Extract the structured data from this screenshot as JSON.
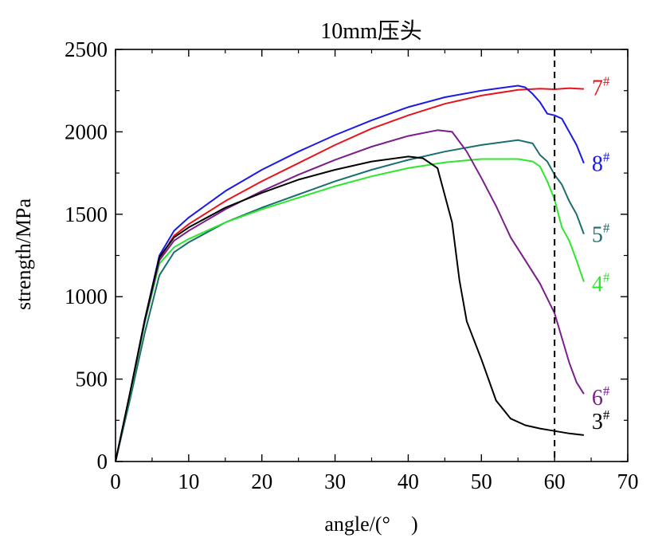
{
  "chart_data": {
    "type": "line",
    "title": "10mm压头",
    "xlabel": "angle/(°　)",
    "ylabel": "strength/MPa",
    "xlim": [
      0,
      70
    ],
    "ylim": [
      0,
      2500
    ],
    "x_ticks": [
      0,
      10,
      20,
      30,
      40,
      50,
      60,
      70
    ],
    "y_ticks": [
      0,
      500,
      1000,
      1500,
      2000,
      2500
    ],
    "grid": false,
    "legend": "inline labels at line ends",
    "reference_line": {
      "x": 60,
      "style": "dashed",
      "color": "#000000"
    },
    "series": [
      {
        "name": "7#",
        "label_main": "7",
        "label_sup": "#",
        "color": "#e8141c",
        "x": [
          0,
          2,
          4,
          6,
          8,
          10,
          15,
          20,
          25,
          30,
          35,
          40,
          45,
          50,
          55,
          58,
          60,
          62,
          64
        ],
        "y": [
          0,
          420,
          850,
          1230,
          1370,
          1440,
          1580,
          1700,
          1810,
          1920,
          2020,
          2100,
          2170,
          2220,
          2255,
          2262,
          2258,
          2265,
          2260
        ]
      },
      {
        "name": "8#",
        "label_main": "8",
        "label_sup": "#",
        "color": "#1a1ae6",
        "x": [
          0,
          2,
          4,
          6,
          8,
          10,
          15,
          20,
          25,
          30,
          35,
          40,
          45,
          50,
          55,
          56,
          57,
          58,
          59,
          60,
          61,
          62,
          63,
          64
        ],
        "y": [
          0,
          420,
          860,
          1250,
          1400,
          1480,
          1640,
          1770,
          1880,
          1980,
          2070,
          2150,
          2210,
          2250,
          2280,
          2270,
          2230,
          2180,
          2110,
          2100,
          2080,
          2000,
          1920,
          1810
        ]
      },
      {
        "name": "5#",
        "label_main": "5",
        "label_sup": "#",
        "color": "#1a6e6e",
        "x": [
          0,
          2,
          4,
          6,
          8,
          10,
          15,
          20,
          25,
          30,
          35,
          40,
          45,
          50,
          55,
          57,
          58,
          59,
          60,
          61,
          62,
          63,
          64
        ],
        "y": [
          0,
          380,
          780,
          1130,
          1270,
          1330,
          1450,
          1540,
          1620,
          1700,
          1770,
          1830,
          1880,
          1920,
          1950,
          1930,
          1860,
          1820,
          1740,
          1680,
          1580,
          1500,
          1380
        ]
      },
      {
        "name": "4#",
        "label_main": "4",
        "label_sup": "#",
        "color": "#2ce82c",
        "x": [
          0,
          2,
          4,
          6,
          8,
          10,
          15,
          20,
          25,
          30,
          35,
          40,
          45,
          50,
          55,
          57,
          58,
          59,
          60,
          61,
          62,
          63,
          64
        ],
        "y": [
          0,
          410,
          840,
          1200,
          1300,
          1350,
          1450,
          1530,
          1600,
          1670,
          1730,
          1780,
          1815,
          1835,
          1835,
          1820,
          1790,
          1700,
          1590,
          1420,
          1340,
          1220,
          1090
        ]
      },
      {
        "name": "6#",
        "label_main": "6",
        "label_sup": "#",
        "color": "#7a1e8c",
        "x": [
          0,
          2,
          4,
          6,
          8,
          10,
          15,
          20,
          25,
          30,
          35,
          40,
          44,
          46,
          48,
          50,
          52,
          54,
          56,
          58,
          60,
          62,
          63,
          64
        ],
        "y": [
          0,
          420,
          850,
          1220,
          1340,
          1400,
          1530,
          1640,
          1740,
          1830,
          1910,
          1975,
          2010,
          2000,
          1880,
          1720,
          1550,
          1360,
          1220,
          1080,
          900,
          600,
          480,
          410
        ]
      },
      {
        "name": "3#",
        "label_main": "3",
        "label_sup": "#",
        "color": "#000000",
        "x": [
          0,
          2,
          4,
          6,
          8,
          10,
          15,
          20,
          25,
          30,
          35,
          40,
          42,
          44,
          46,
          47,
          48,
          50,
          52,
          54,
          56,
          58,
          60,
          62,
          64
        ],
        "y": [
          0,
          420,
          860,
          1240,
          1360,
          1420,
          1540,
          1630,
          1710,
          1770,
          1820,
          1850,
          1840,
          1780,
          1450,
          1100,
          850,
          620,
          370,
          260,
          220,
          200,
          185,
          170,
          160
        ]
      }
    ]
  }
}
